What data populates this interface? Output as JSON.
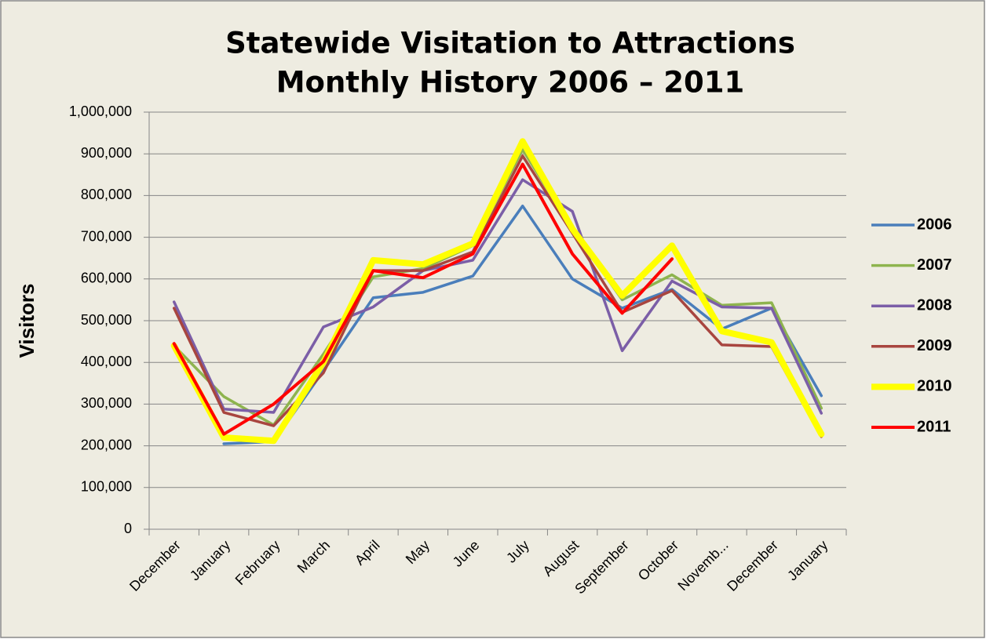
{
  "chart_data": {
    "type": "line",
    "title": [
      "Statewide Visitation to Attractions",
      "Monthly History 2006 – 2011"
    ],
    "y_label": "Visitors",
    "categories": [
      "December",
      "January",
      "February",
      "March",
      "April",
      "May",
      "June",
      "July",
      "August",
      "September",
      "October",
      "Novemb...",
      "December",
      "January"
    ],
    "series": [
      {
        "name": "2006",
        "color": "#4a7ebb",
        "width": 3.5,
        "values": [
          null,
          205000,
          210000,
          380000,
          555000,
          568000,
          607000,
          775000,
          600000,
          530000,
          575000,
          480000,
          530000,
          320000
        ]
      },
      {
        "name": "2007",
        "color": "#8eb44e",
        "width": 3.5,
        "values": [
          440000,
          318000,
          250000,
          420000,
          605000,
          625000,
          680000,
          910000,
          720000,
          550000,
          610000,
          537000,
          543000,
          290000
        ]
      },
      {
        "name": "2008",
        "color": "#7b5ea7",
        "width": 3.5,
        "values": [
          545000,
          288000,
          280000,
          485000,
          533000,
          620000,
          645000,
          838000,
          762000,
          428000,
          595000,
          533000,
          530000,
          278000
        ]
      },
      {
        "name": "2009",
        "color": "#a8453f",
        "width": 3.5,
        "values": [
          530000,
          280000,
          248000,
          375000,
          620000,
          620000,
          665000,
          895000,
          710000,
          520000,
          572000,
          442000,
          438000,
          222000
        ]
      },
      {
        "name": "2010",
        "color": "#ffff00",
        "width": 8,
        "values": [
          440000,
          220000,
          212000,
          400000,
          645000,
          635000,
          685000,
          930000,
          720000,
          560000,
          680000,
          475000,
          448000,
          228000
        ]
      },
      {
        "name": "2011",
        "color": "#ff0000",
        "width": 4,
        "values": [
          445000,
          228000,
          300000,
          402000,
          620000,
          603000,
          660000,
          875000,
          660000,
          518000,
          648000,
          null,
          null,
          null
        ]
      }
    ],
    "ylim": [
      0,
      1000000
    ],
    "yticks": [
      0,
      {
        "value": 100000,
        "label": "100,000"
      },
      {
        "value": 200000,
        "label": "200,000"
      },
      {
        "value": 300000,
        "label": "300,000"
      },
      {
        "value": 400000,
        "label": "400,000"
      },
      {
        "value": 500000,
        "label": "500,000"
      },
      {
        "value": 600000,
        "label": "600,000"
      },
      {
        "value": 700000,
        "label": "700,000"
      },
      {
        "value": 800000,
        "label": "800,000"
      },
      {
        "value": 900000,
        "label": "900,000"
      },
      {
        "value": 1000000,
        "label": "1,000,000"
      }
    ],
    "grid": true,
    "legend": "right"
  }
}
